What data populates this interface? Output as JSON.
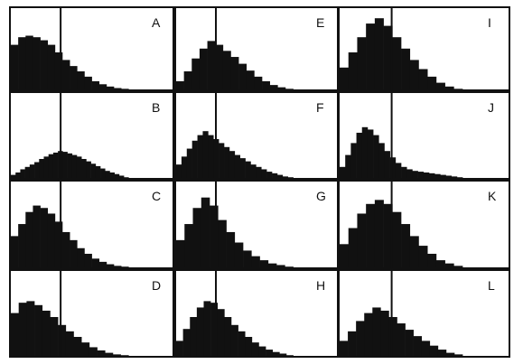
{
  "chart_data": {
    "type": "bar",
    "layout": {
      "rows": 4,
      "cols": 3,
      "order": "column-major"
    },
    "colors": {
      "bars": "#111111",
      "frame": "#111111",
      "background": "#ffffff"
    },
    "panels": [
      {
        "label": "A",
        "divider": 0.31,
        "values": [
          0.6,
          0.7,
          0.72,
          0.7,
          0.66,
          0.6,
          0.5,
          0.4,
          0.32,
          0.25,
          0.18,
          0.12,
          0.08,
          0.05,
          0.03,
          0.02
        ]
      },
      {
        "label": "B",
        "divider": 0.31,
        "values": [
          0.05,
          0.08,
          0.12,
          0.15,
          0.18,
          0.21,
          0.25,
          0.28,
          0.31,
          0.33,
          0.35,
          0.34,
          0.32,
          0.3,
          0.28,
          0.25,
          0.22,
          0.19,
          0.16,
          0.13,
          0.1,
          0.08,
          0.06,
          0.04,
          0.02
        ]
      },
      {
        "label": "C",
        "divider": 0.31,
        "values": [
          0.4,
          0.55,
          0.7,
          0.78,
          0.75,
          0.68,
          0.58,
          0.45,
          0.35,
          0.25,
          0.18,
          0.12,
          0.08,
          0.05,
          0.03,
          0.02
        ]
      },
      {
        "label": "D",
        "divider": 0.31,
        "values": [
          0.55,
          0.68,
          0.7,
          0.65,
          0.58,
          0.5,
          0.4,
          0.32,
          0.25,
          0.18,
          0.12,
          0.08,
          0.05,
          0.03,
          0.02
        ]
      },
      {
        "label": "E",
        "divider": 0.25,
        "values": [
          0.12,
          0.25,
          0.42,
          0.55,
          0.65,
          0.6,
          0.52,
          0.44,
          0.35,
          0.26,
          0.18,
          0.12,
          0.07,
          0.04,
          0.02
        ]
      },
      {
        "label": "F",
        "divider": 0.25,
        "values": [
          0.18,
          0.28,
          0.38,
          0.48,
          0.55,
          0.6,
          0.55,
          0.5,
          0.45,
          0.4,
          0.35,
          0.3,
          0.26,
          0.22,
          0.18,
          0.15,
          0.12,
          0.09,
          0.07,
          0.05,
          0.03,
          0.02
        ]
      },
      {
        "label": "G",
        "divider": 0.25,
        "values": [
          0.35,
          0.55,
          0.75,
          0.88,
          0.78,
          0.6,
          0.45,
          0.32,
          0.22,
          0.15,
          0.1,
          0.06,
          0.04,
          0.02
        ]
      },
      {
        "label": "H",
        "divider": 0.25,
        "values": [
          0.2,
          0.35,
          0.5,
          0.62,
          0.7,
          0.68,
          0.6,
          0.5,
          0.4,
          0.32,
          0.25,
          0.18,
          0.13,
          0.09,
          0.06,
          0.04,
          0.02
        ]
      },
      {
        "label": "I",
        "divider": 0.31,
        "values": [
          0.3,
          0.5,
          0.7,
          0.88,
          0.95,
          0.85,
          0.7,
          0.55,
          0.4,
          0.28,
          0.18,
          0.1,
          0.05,
          0.02
        ]
      },
      {
        "label": "J",
        "divider": 0.31,
        "values": [
          0.15,
          0.3,
          0.45,
          0.58,
          0.65,
          0.62,
          0.55,
          0.45,
          0.35,
          0.27,
          0.2,
          0.15,
          0.12,
          0.1,
          0.09,
          0.08,
          0.07,
          0.06,
          0.05,
          0.04,
          0.03,
          0.02
        ]
      },
      {
        "label": "K",
        "divider": 0.31,
        "values": [
          0.3,
          0.5,
          0.68,
          0.8,
          0.85,
          0.8,
          0.7,
          0.55,
          0.4,
          0.28,
          0.18,
          0.1,
          0.06,
          0.03
        ]
      },
      {
        "label": "L",
        "divider": 0.31,
        "values": [
          0.2,
          0.32,
          0.45,
          0.55,
          0.62,
          0.58,
          0.5,
          0.42,
          0.34,
          0.26,
          0.2,
          0.14,
          0.09,
          0.05,
          0.03
        ]
      }
    ]
  }
}
